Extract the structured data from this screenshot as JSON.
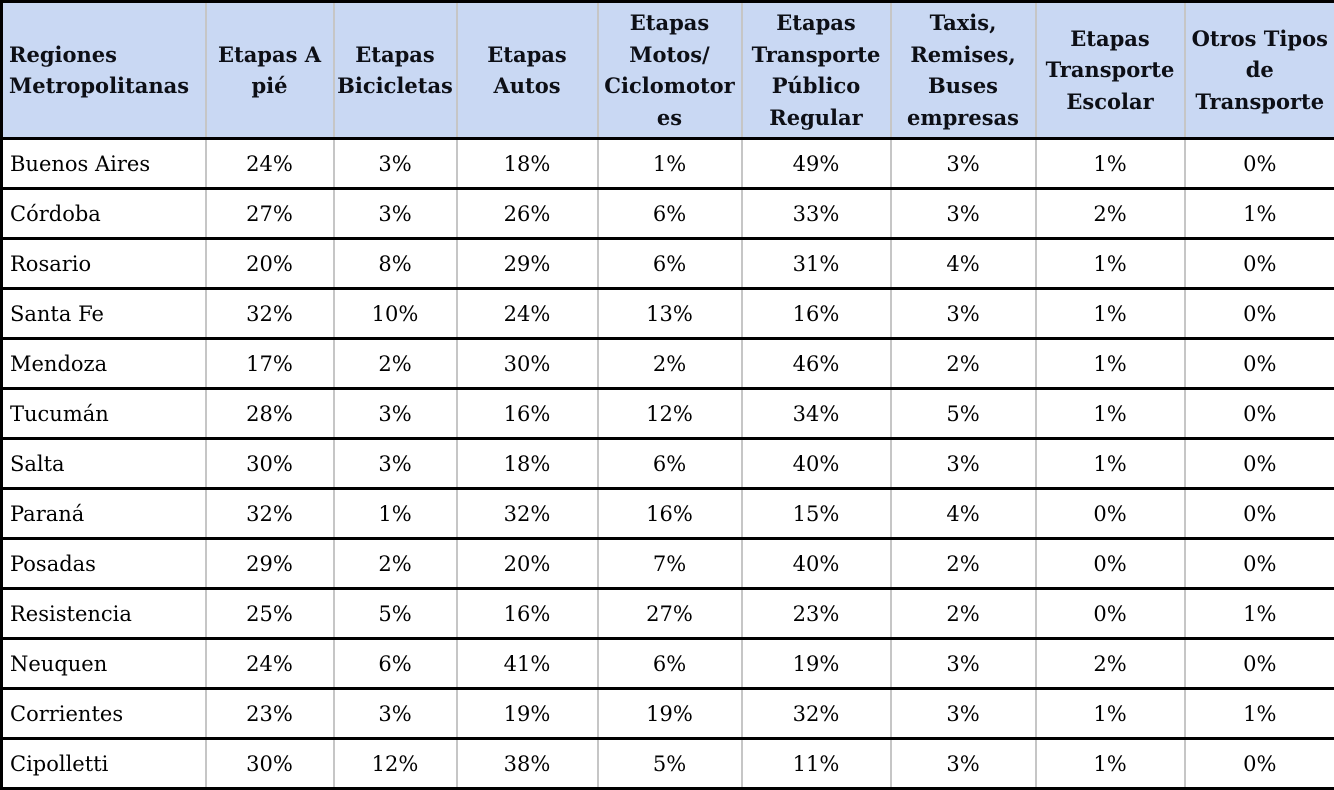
{
  "table": {
    "headers": [
      "Regiones\nMetropolitanas",
      "Etapas A\npié",
      "Etapas\nBicicletas",
      "Etapas\nAutos",
      "Etapas\nMotos/\nCiclomotor\nes",
      "Etapas\nTransporte\nPúblico\nRegular",
      "Taxis,\nRemises,\nBuses\nempresas",
      "Etapas\nTransporte\nEscolar",
      "Otros Tipos\nde\nTransporte"
    ],
    "rows": [
      {
        "region": "Buenos Aires",
        "values": [
          "24%",
          "3%",
          "18%",
          "1%",
          "49%",
          "3%",
          "1%",
          "0%"
        ]
      },
      {
        "region": "Córdoba",
        "values": [
          "27%",
          "3%",
          "26%",
          "6%",
          "33%",
          "3%",
          "2%",
          "1%"
        ]
      },
      {
        "region": "Rosario",
        "values": [
          "20%",
          "8%",
          "29%",
          "6%",
          "31%",
          "4%",
          "1%",
          "0%"
        ]
      },
      {
        "region": "Santa Fe",
        "values": [
          "32%",
          "10%",
          "24%",
          "13%",
          "16%",
          "3%",
          "1%",
          "0%"
        ]
      },
      {
        "region": "Mendoza",
        "values": [
          "17%",
          "2%",
          "30%",
          "2%",
          "46%",
          "2%",
          "1%",
          "0%"
        ]
      },
      {
        "region": "Tucumán",
        "values": [
          "28%",
          "3%",
          "16%",
          "12%",
          "34%",
          "5%",
          "1%",
          "0%"
        ]
      },
      {
        "region": "Salta",
        "values": [
          "30%",
          "3%",
          "18%",
          "6%",
          "40%",
          "3%",
          "1%",
          "0%"
        ]
      },
      {
        "region": "Paraná",
        "values": [
          "32%",
          "1%",
          "32%",
          "16%",
          "15%",
          "4%",
          "0%",
          "0%"
        ]
      },
      {
        "region": "Posadas",
        "values": [
          "29%",
          "2%",
          "20%",
          "7%",
          "40%",
          "2%",
          "0%",
          "0%"
        ]
      },
      {
        "region": "Resistencia",
        "values": [
          "25%",
          "5%",
          "16%",
          "27%",
          "23%",
          "2%",
          "0%",
          "1%"
        ]
      },
      {
        "region": "Neuquen",
        "values": [
          "24%",
          "6%",
          "41%",
          "6%",
          "19%",
          "3%",
          "2%",
          "0%"
        ]
      },
      {
        "region": "Corrientes",
        "values": [
          "23%",
          "3%",
          "19%",
          "19%",
          "32%",
          "3%",
          "1%",
          "1%"
        ]
      },
      {
        "region": "Cipolletti",
        "values": [
          "30%",
          "12%",
          "38%",
          "5%",
          "11%",
          "3%",
          "1%",
          "0%"
        ]
      }
    ]
  },
  "chart_data": {
    "type": "table",
    "title": "",
    "columns": [
      "Regiones Metropolitanas",
      "Etapas A pié",
      "Etapas Bicicletas",
      "Etapas Autos",
      "Etapas Motos/Ciclomotores",
      "Etapas Transporte Público Regular",
      "Taxis, Remises, Buses empresas",
      "Etapas Transporte Escolar",
      "Otros Tipos de Transporte"
    ],
    "unit": "percent",
    "rows": [
      [
        "Buenos Aires",
        24,
        3,
        18,
        1,
        49,
        3,
        1,
        0
      ],
      [
        "Córdoba",
        27,
        3,
        26,
        6,
        33,
        3,
        2,
        1
      ],
      [
        "Rosario",
        20,
        8,
        29,
        6,
        31,
        4,
        1,
        0
      ],
      [
        "Santa Fe",
        32,
        10,
        24,
        13,
        16,
        3,
        1,
        0
      ],
      [
        "Mendoza",
        17,
        2,
        30,
        2,
        46,
        2,
        1,
        0
      ],
      [
        "Tucumán",
        28,
        3,
        16,
        12,
        34,
        5,
        1,
        0
      ],
      [
        "Salta",
        30,
        3,
        18,
        6,
        40,
        3,
        1,
        0
      ],
      [
        "Paraná",
        32,
        1,
        32,
        16,
        15,
        4,
        0,
        0
      ],
      [
        "Posadas",
        29,
        2,
        20,
        7,
        40,
        2,
        0,
        0
      ],
      [
        "Resistencia",
        25,
        5,
        16,
        27,
        23,
        2,
        0,
        1
      ],
      [
        "Neuquen",
        24,
        6,
        41,
        6,
        19,
        3,
        2,
        0
      ],
      [
        "Corrientes",
        23,
        3,
        19,
        19,
        32,
        3,
        1,
        1
      ],
      [
        "Cipolletti",
        30,
        12,
        38,
        5,
        11,
        3,
        1,
        0
      ]
    ]
  },
  "colors": {
    "header_bg": "#c9d8f3",
    "row_border": "#000000",
    "column_border": "#c6c6c6",
    "text": "#000000"
  }
}
